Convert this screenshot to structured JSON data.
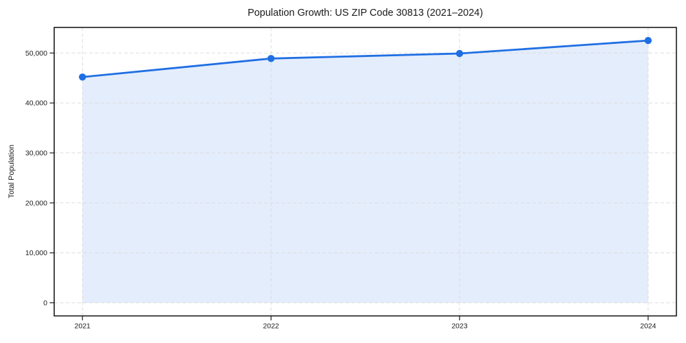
{
  "figure": {
    "background": "#ffffff"
  },
  "chart_data": {
    "type": "line",
    "title": "Population Growth: US ZIP Code 30813 (2021–2024)",
    "xlabel": "",
    "ylabel": "Total Population",
    "categories": [
      "2021",
      "2022",
      "2023",
      "2024"
    ],
    "series": [
      {
        "name": "Total Population",
        "values": [
          45200,
          48900,
          49900,
          52500
        ]
      }
    ],
    "yticks": [
      0,
      10000,
      20000,
      30000,
      40000,
      50000
    ],
    "ytick_labels": [
      "0",
      "10,000",
      "20,000",
      "30,000",
      "40,000",
      "50,000"
    ],
    "ylim": [
      -2625,
      55125
    ],
    "grid": true,
    "grid_style": "dashed",
    "legend_position": "none",
    "marker": "circle",
    "area_fill": true,
    "colors": {
      "line": "#1f6fe3",
      "marker": "#1f6fe3",
      "area_fill": "#1f6fe3",
      "area_opacity": "0.12",
      "grid": "#dcdcdc",
      "spine": "#1a1a1a",
      "text": "#1a1a1a"
    }
  }
}
